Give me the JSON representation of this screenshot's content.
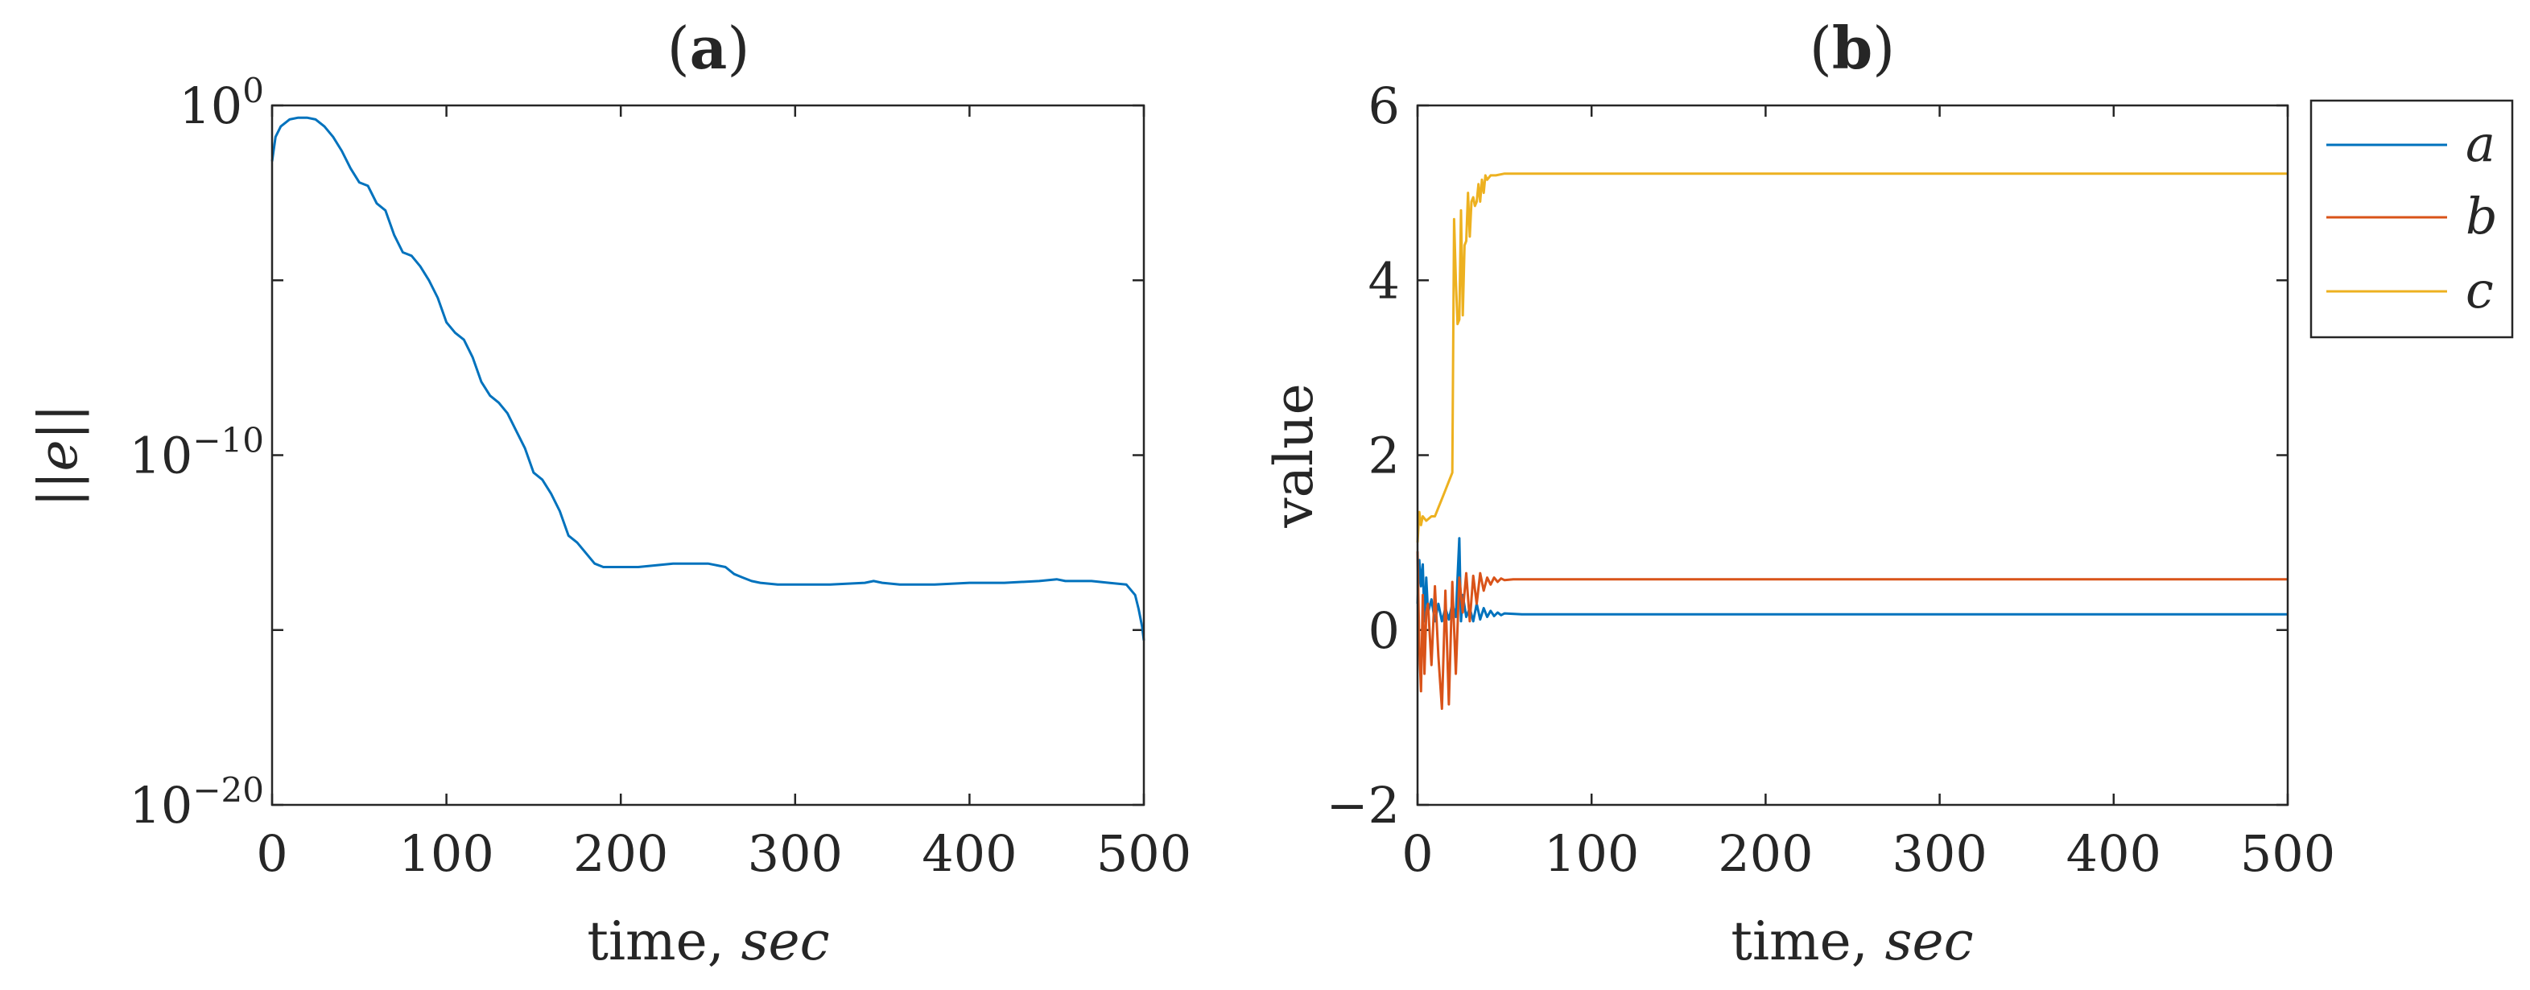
{
  "chart_data": [
    {
      "id": "a",
      "type": "line",
      "title_bold": "a",
      "title_prefix": "(",
      "title_suffix": ")",
      "xlabel_plain": "time, ",
      "xlabel_italic": "sec",
      "ylabel": "||e||",
      "yscale": "log",
      "xlim": [
        0,
        500
      ],
      "ylim_exponents": [
        -20,
        0
      ],
      "xticks": [
        0,
        100,
        200,
        300,
        400,
        500
      ],
      "xtick_labels": [
        "0",
        "100",
        "200",
        "300",
        "400",
        "500"
      ],
      "yticks_exponents": [
        -20,
        -10,
        0
      ],
      "ytick_base": "10",
      "ytick_exponent_labels": [
        "−20",
        "−10",
        "0"
      ],
      "series": [
        {
          "name": "||e||",
          "color": "#0072BD",
          "x": [
            0,
            2,
            5,
            10,
            15,
            20,
            25,
            30,
            35,
            40,
            45,
            50,
            55,
            60,
            65,
            70,
            75,
            80,
            85,
            90,
            95,
            100,
            105,
            110,
            115,
            120,
            125,
            130,
            135,
            140,
            145,
            150,
            155,
            160,
            165,
            170,
            175,
            180,
            185,
            190,
            195,
            200,
            210,
            220,
            230,
            240,
            250,
            260,
            265,
            270,
            275,
            280,
            290,
            300,
            320,
            340,
            345,
            350,
            360,
            380,
            400,
            420,
            440,
            450,
            455,
            460,
            470,
            480,
            490,
            495,
            497,
            499,
            500
          ],
          "y_log10": [
            -1.6,
            -0.9,
            -0.6,
            -0.4,
            -0.35,
            -0.35,
            -0.4,
            -0.6,
            -0.9,
            -1.3,
            -1.8,
            -2.2,
            -2.3,
            -2.8,
            -3.0,
            -3.7,
            -4.2,
            -4.3,
            -4.6,
            -5.0,
            -5.5,
            -6.2,
            -6.5,
            -6.7,
            -7.2,
            -7.9,
            -8.3,
            -8.5,
            -8.8,
            -9.3,
            -9.8,
            -10.5,
            -10.7,
            -11.1,
            -11.6,
            -12.3,
            -12.5,
            -12.8,
            -13.1,
            -13.2,
            -13.2,
            -13.2,
            -13.2,
            -13.15,
            -13.1,
            -13.1,
            -13.1,
            -13.2,
            -13.4,
            -13.5,
            -13.6,
            -13.65,
            -13.7,
            -13.7,
            -13.7,
            -13.65,
            -13.6,
            -13.65,
            -13.7,
            -13.7,
            -13.65,
            -13.65,
            -13.6,
            -13.55,
            -13.6,
            -13.6,
            -13.6,
            -13.65,
            -13.7,
            -14.0,
            -14.4,
            -14.9,
            -15.3
          ]
        }
      ]
    },
    {
      "id": "b",
      "type": "line",
      "title_bold": "b",
      "title_prefix": "(",
      "title_suffix": ")",
      "xlabel_plain": "time, ",
      "xlabel_italic": "sec",
      "ylabel": "value",
      "xlim": [
        0,
        500
      ],
      "ylim": [
        -2,
        6
      ],
      "xticks": [
        0,
        100,
        200,
        300,
        400,
        500
      ],
      "xtick_labels": [
        "0",
        "100",
        "200",
        "300",
        "400",
        "500"
      ],
      "yticks": [
        -2,
        0,
        2,
        4,
        6
      ],
      "ytick_labels": [
        "−2",
        "0",
        "2",
        "4",
        "6"
      ],
      "legend_position": "outside-top-right",
      "series": [
        {
          "name": "a",
          "color": "#0072BD",
          "x": [
            0,
            1,
            2,
            3,
            4,
            5,
            6,
            8,
            10,
            12,
            14,
            16,
            18,
            20,
            22,
            23,
            24,
            25,
            26,
            28,
            30,
            32,
            34,
            36,
            38,
            40,
            42,
            44,
            46,
            48,
            50,
            60,
            100,
            500
          ],
          "y": [
            0.3,
            0.8,
            0.5,
            0.75,
            0.1,
            0.6,
            0.2,
            0.35,
            0.1,
            0.3,
            0.1,
            0.25,
            0.12,
            0.3,
            0.15,
            0.6,
            1.05,
            0.1,
            0.4,
            0.15,
            0.25,
            0.1,
            0.3,
            0.12,
            0.25,
            0.15,
            0.22,
            0.16,
            0.2,
            0.17,
            0.19,
            0.18,
            0.18,
            0.18
          ]
        },
        {
          "name": "b",
          "color": "#D95319",
          "x": [
            0,
            1,
            2,
            3,
            4,
            5,
            6,
            8,
            10,
            12,
            14,
            16,
            18,
            20,
            22,
            24,
            26,
            28,
            30,
            32,
            34,
            36,
            38,
            40,
            42,
            44,
            46,
            48,
            50,
            55,
            60,
            100,
            500
          ],
          "y": [
            0.9,
            -0.2,
            -0.7,
            0.4,
            -0.5,
            0.2,
            0.3,
            -0.4,
            0.5,
            -0.3,
            -0.9,
            0.45,
            -0.85,
            0.55,
            -0.5,
            0.6,
            0.2,
            0.65,
            0.1,
            0.62,
            0.3,
            0.65,
            0.45,
            0.6,
            0.52,
            0.6,
            0.55,
            0.59,
            0.57,
            0.58,
            0.58,
            0.58,
            0.58
          ]
        },
        {
          "name": "c",
          "color": "#EDB120",
          "x": [
            0,
            1,
            2,
            3,
            5,
            8,
            10,
            12,
            14,
            16,
            18,
            20,
            21,
            22,
            23,
            24,
            25,
            26,
            27,
            28,
            29,
            30,
            31,
            32,
            33,
            34,
            35,
            36,
            37,
            38,
            39,
            40,
            42,
            45,
            50,
            60,
            100,
            500
          ],
          "y": [
            1.0,
            1.35,
            1.2,
            1.3,
            1.25,
            1.3,
            1.3,
            1.4,
            1.5,
            1.6,
            1.7,
            1.8,
            4.7,
            4.0,
            3.5,
            3.55,
            4.8,
            3.6,
            4.4,
            4.45,
            5.0,
            4.5,
            4.9,
            4.95,
            4.85,
            4.9,
            5.1,
            4.9,
            5.15,
            5.0,
            5.2,
            5.15,
            5.2,
            5.2,
            5.22,
            5.22,
            5.22,
            5.22
          ]
        }
      ]
    }
  ]
}
